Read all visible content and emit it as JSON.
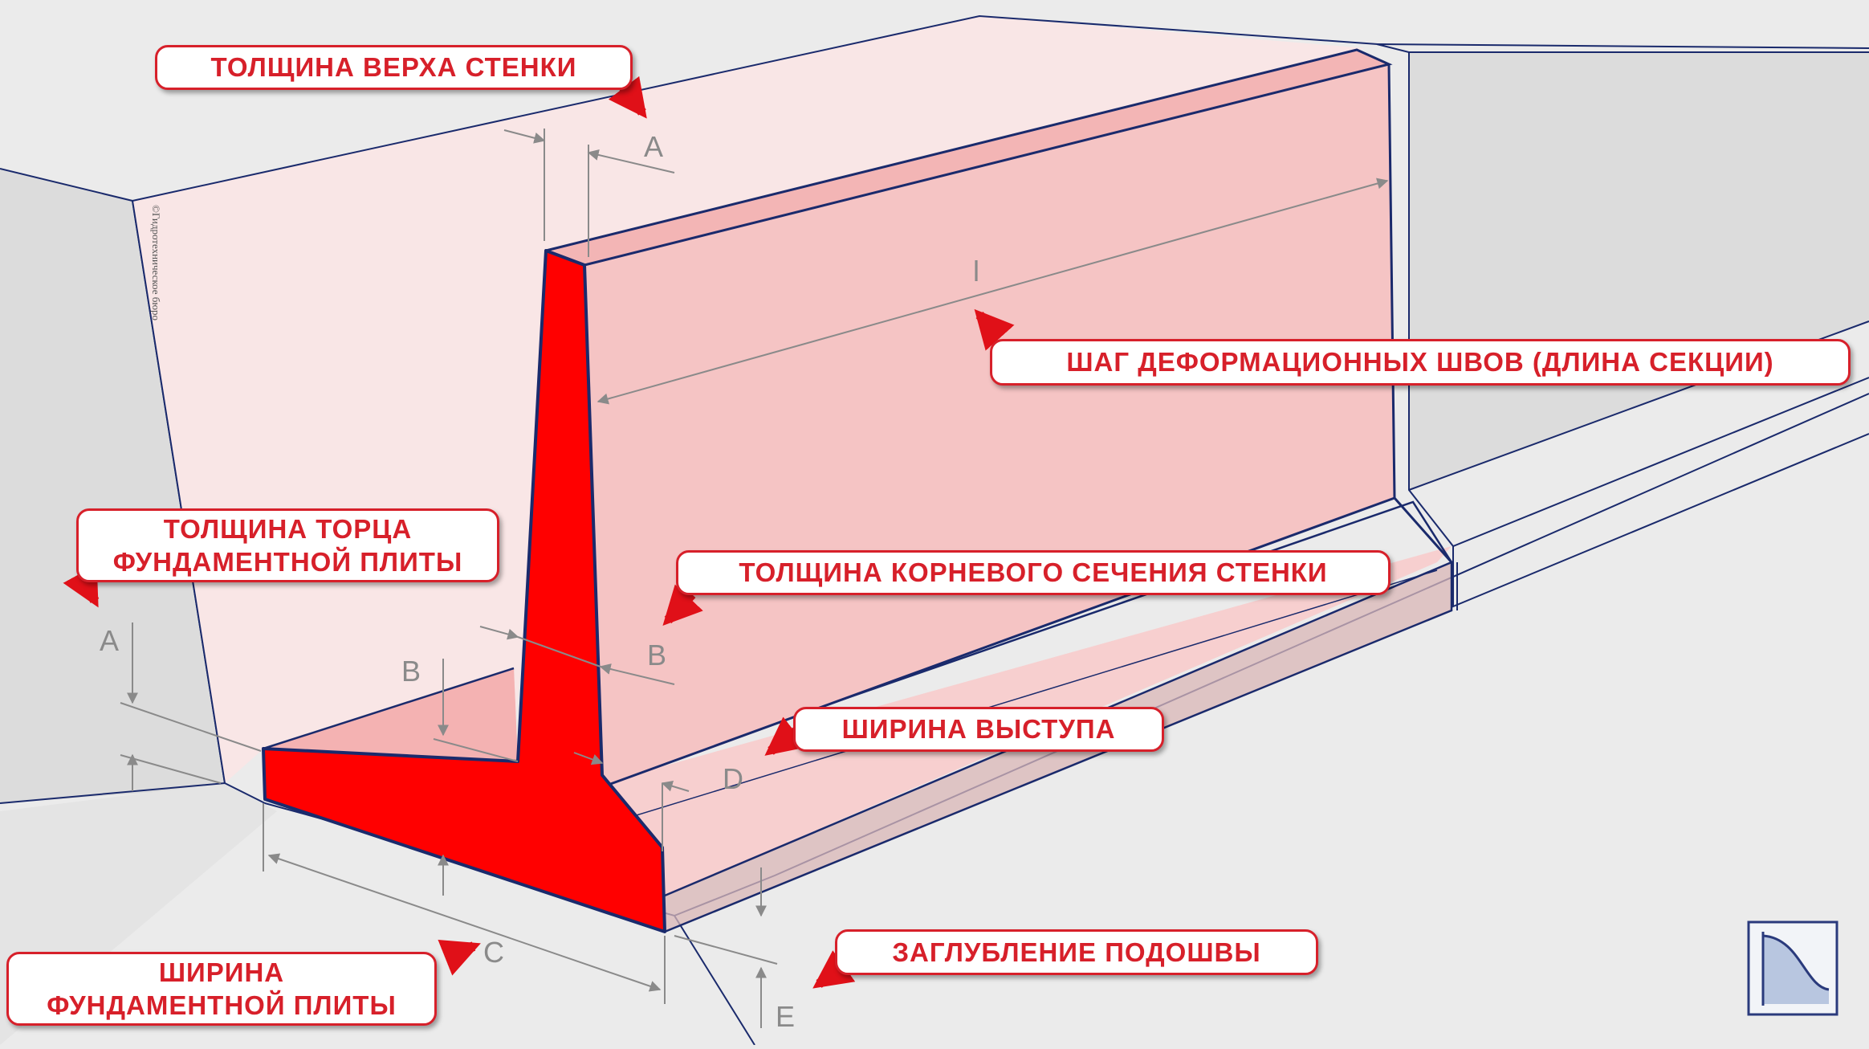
{
  "labels": {
    "top_thickness": "ТОЛЩИНА ВЕРХА СТЕНКИ",
    "joint_spacing": "ШАГ ДЕФОРМАЦИОННЫХ ШВОВ (ДЛИНА СЕКЦИИ)",
    "end_thickness_line1": "ТОЛЩИНА ТОРЦА",
    "end_thickness_line2": "ФУНДАМЕНТНОЙ ПЛИТЫ",
    "root_thickness": "ТОЛЩИНА КОРНЕВОГО СЕЧЕНИЯ СТЕНКИ",
    "toe_width": "ШИРИНА ВЫСТУПА",
    "base_width_line1": "ШИРИНА",
    "base_width_line2": "ФУНДАМЕНТНОЙ ПЛИТЫ",
    "embedment": "ЗАГЛУБЛЕНИЕ ПОДОШВЫ"
  },
  "dimensions": {
    "a_top": "A",
    "a_end": "A",
    "b_root": "B",
    "b_slab": "B",
    "c": "C",
    "d": "D",
    "e": "E",
    "l": "l"
  },
  "copyright": "©Гидротехническое бюро",
  "logo": "bureau-logo-icon",
  "colors": {
    "section": "#ff0000",
    "wall": "#f5c4c4",
    "outline": "#1a2a6c",
    "label_border": "#d7202a",
    "dimension": "#8a8a8a",
    "background": "#ebebeb"
  }
}
